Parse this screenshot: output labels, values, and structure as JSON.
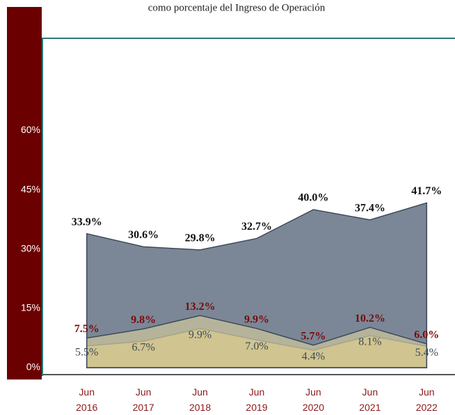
{
  "chart_data": {
    "type": "area",
    "subtitle": "como porcentaje del Ingreso de Operación",
    "categories": [
      "Jun 2016",
      "Jun 2017",
      "Jun 2018",
      "Jun 2019",
      "Jun 2020",
      "Jun 2021",
      "Jun 2022"
    ],
    "series": [
      {
        "color": "#7b8796",
        "label_color": "#111111",
        "label_weight": "bold",
        "values": [
          33.9,
          30.6,
          29.8,
          32.7,
          40.0,
          37.4,
          41.7
        ],
        "value_labels": [
          "33.9%",
          "30.6%",
          "29.8%",
          "32.7%",
          "40.0%",
          "37.4%",
          "41.7%"
        ]
      },
      {
        "color": "#e6c86c",
        "label_color": "#3d4a5c",
        "label_weight": "normal",
        "values": [
          5.5,
          6.7,
          9.9,
          7.0,
          4.4,
          8.1,
          5.4
        ],
        "value_labels": [
          "5.5%",
          "6.7%",
          "9.9%",
          "7.0%",
          "4.4%",
          "8.1%",
          "5.4%"
        ]
      },
      {
        "color": "#c8c39c",
        "label_color": "#7a0a0a",
        "label_weight": "bold",
        "values": [
          7.5,
          9.8,
          13.2,
          9.9,
          5.7,
          10.2,
          6.0
        ],
        "value_labels": [
          "7.5%",
          "9.8%",
          "13.2%",
          "9.9%",
          "5.7%",
          "10.2%",
          "6.0%"
        ]
      }
    ],
    "ylim": [
      0,
      83
    ],
    "yticks": [
      {
        "value": 0,
        "label": "0%"
      },
      {
        "value": 15,
        "label": "15%"
      },
      {
        "value": 30,
        "label": "30%"
      },
      {
        "value": 45,
        "label": "45%"
      },
      {
        "value": 60,
        "label": "60%"
      }
    ]
  }
}
